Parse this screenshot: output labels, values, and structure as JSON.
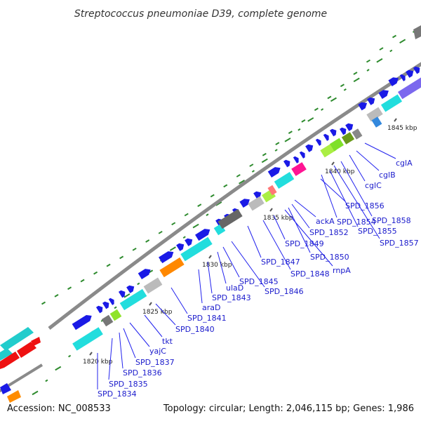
{
  "title": "Streptococcus pneumoniae D39, complete genome",
  "footer": {
    "accession": "Accession: NC_008533",
    "info": "Topology: circular; Length: 2,046,115 bp; Genes: 1,986"
  },
  "colors": {
    "backbone": "#8a8a8a",
    "leader": "#2222ee",
    "label": "#1a1acc",
    "tick": "#2e8b2e",
    "blue_gene": "#1a1ae6",
    "cyan_gene": "#22dddd"
  },
  "kbp_marks": [
    "1820 kbp",
    "1825 kbp",
    "1830 kbp",
    "1835 kbp",
    "1840 kbp",
    "1845 kbp"
  ],
  "genes": [
    "SPD_1834",
    "SPD_1835",
    "SPD_1836",
    "SPD_1837",
    "yajC",
    "tkt",
    "SPD_1840",
    "SPD_1841",
    "araD",
    "SPD_1843",
    "ulaD",
    "SPD_1845",
    "SPD_1846",
    "SPD_1847",
    "SPD_1848",
    "SPD_1849",
    "rnpA",
    "SPD_1850",
    "SPD_1852",
    "ackA",
    "SPD_1854",
    "SPD_1855",
    "SPD_1856",
    "SPD_1857",
    "SPD_1858",
    "cglC",
    "cglB",
    "cglA"
  ]
}
